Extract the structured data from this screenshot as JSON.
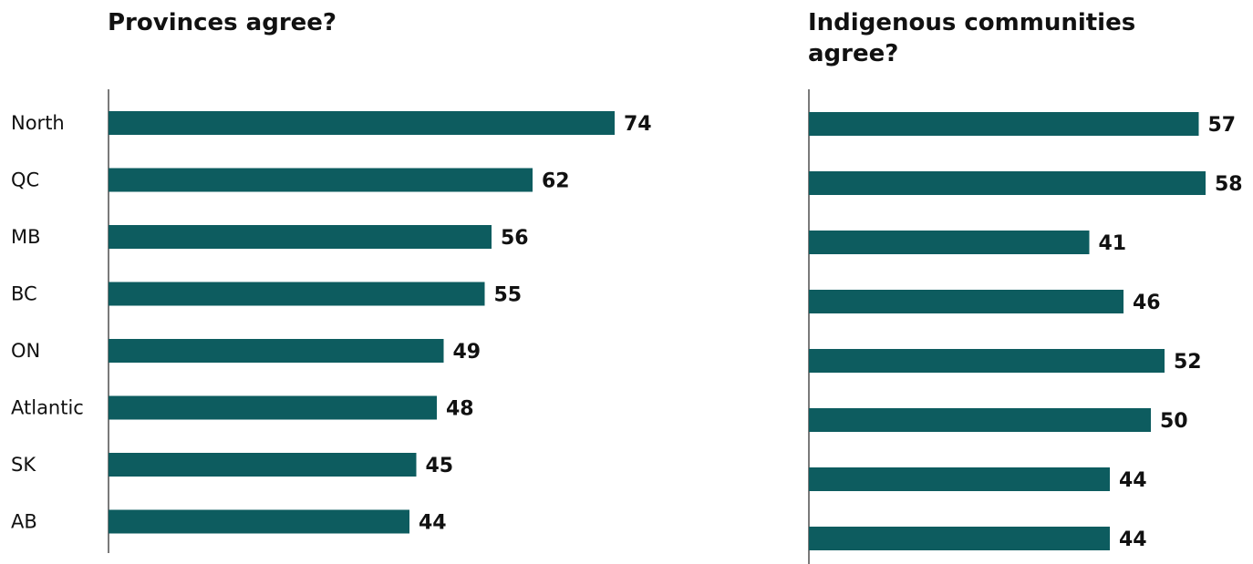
{
  "colors": {
    "bar": "#0d5c5f",
    "axis": "#222222"
  },
  "chart_data": [
    {
      "type": "bar",
      "orientation": "horizontal",
      "title": "Provinces agree?",
      "categories": [
        "North",
        "QC",
        "MB",
        "BC",
        "ON",
        "Atlantic",
        "SK",
        "AB"
      ],
      "values": [
        74,
        62,
        56,
        55,
        49,
        48,
        45,
        44
      ],
      "xlim": [
        0,
        100
      ],
      "grid": false,
      "legend": "none"
    },
    {
      "type": "bar",
      "orientation": "horizontal",
      "title": "Indigenous communities agree?",
      "categories": [
        "North",
        "QC",
        "MB",
        "BC",
        "ON",
        "Atlantic",
        "SK",
        "AB"
      ],
      "values": [
        57,
        58,
        41,
        46,
        52,
        50,
        44,
        44
      ],
      "xlim": [
        0,
        100
      ],
      "grid": false,
      "legend": "none"
    }
  ]
}
